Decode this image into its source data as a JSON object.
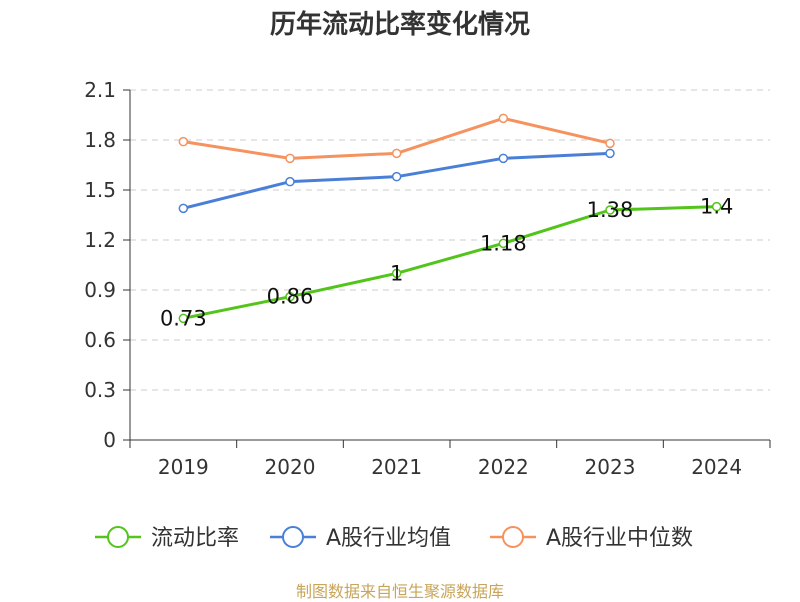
{
  "chart_data": {
    "type": "line",
    "title": "历年流动比率变化情况",
    "categories": [
      "2019",
      "2020",
      "2021",
      "2022",
      "2023",
      "2024"
    ],
    "y_ticks": [
      "0",
      "0.3",
      "0.6",
      "0.9",
      "1.2",
      "1.5",
      "1.8",
      "2.1"
    ],
    "ylim": [
      0,
      2.1
    ],
    "grid": true,
    "legend_position": "bottom",
    "series": [
      {
        "name": "流动比率",
        "color": "#52c41a",
        "values": [
          0.73,
          0.86,
          1,
          1.18,
          1.38,
          1.4
        ],
        "labels": [
          "0.73",
          "0.86",
          "1",
          "1.18",
          "1.38",
          "1.4"
        ]
      },
      {
        "name": "A股行业均值",
        "color": "#4a7fd8",
        "values": [
          1.39,
          1.55,
          1.58,
          1.69,
          1.72,
          null
        ]
      },
      {
        "name": "A股行业中位数",
        "color": "#f5925e",
        "values": [
          1.79,
          1.69,
          1.72,
          1.93,
          1.78,
          null
        ]
      }
    ]
  },
  "source": "制图数据来自恒生聚源数据库"
}
